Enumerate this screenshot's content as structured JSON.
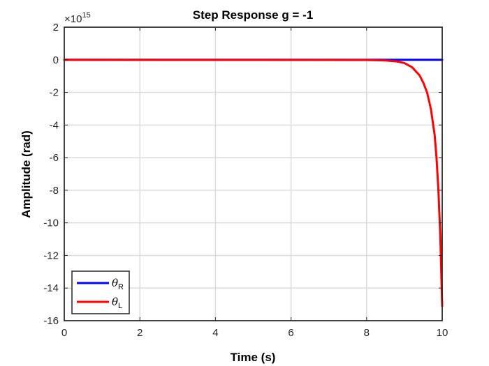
{
  "chart_data": {
    "type": "line",
    "title": "Step Response g = -1",
    "xlabel": "Time (s)",
    "ylabel": "Amplitude (rad)",
    "xlim": [
      0,
      10
    ],
    "ylim": [
      -16,
      2
    ],
    "y_exponent": {
      "prefix": "×10",
      "power": "15"
    },
    "x_ticks": [
      0,
      2,
      4,
      6,
      8,
      10
    ],
    "y_ticks": [
      2,
      0,
      -2,
      -4,
      -6,
      -8,
      -10,
      -12,
      -14,
      -16
    ],
    "grid": true,
    "legend_position": "bottom-left",
    "series": [
      {
        "name": "θR",
        "symbol": "θ",
        "subscript": "R",
        "color": "#0000ff",
        "x": [
          0,
          10
        ],
        "y": [
          0,
          0
        ]
      },
      {
        "name": "θL",
        "symbol": "θ",
        "subscript": "L",
        "color": "#ff0000",
        "x": [
          0,
          8.0,
          8.5,
          8.8,
          9.0,
          9.2,
          9.4,
          9.5,
          9.6,
          9.7,
          9.8,
          9.85,
          9.9,
          9.95,
          10.0
        ],
        "y": [
          0,
          -0.01,
          -0.04,
          -0.1,
          -0.2,
          -0.45,
          -0.95,
          -1.4,
          -2.0,
          -3.0,
          -4.6,
          -6.0,
          -8.0,
          -10.8,
          -15.1
        ]
      }
    ]
  }
}
